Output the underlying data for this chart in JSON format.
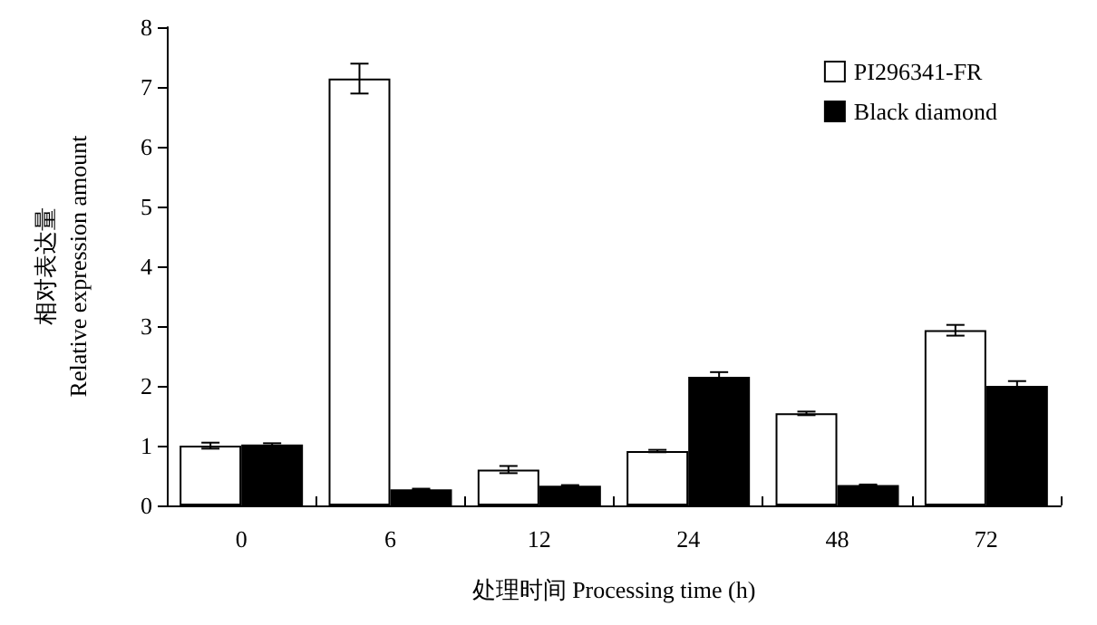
{
  "chart_data": {
    "type": "bar",
    "xlabel": "处理时间 Processing time (h)",
    "ylabel": "相对表达量\nRelative expression amount",
    "categories": [
      "0",
      "6",
      "12",
      "24",
      "48",
      "72"
    ],
    "series": [
      {
        "name": "PI296341-FR",
        "color": "#ffffff",
        "values": [
          1.0,
          7.14,
          0.6,
          0.91,
          1.54,
          2.93
        ],
        "errors": [
          0.05,
          0.25,
          0.06,
          0.02,
          0.03,
          0.09
        ]
      },
      {
        "name": "Black diamond",
        "color": "#000000",
        "values": [
          1.02,
          0.27,
          0.33,
          2.15,
          0.34,
          2.0
        ],
        "errors": [
          0.02,
          0.01,
          0.01,
          0.08,
          0.01,
          0.08
        ]
      }
    ],
    "ylim": [
      0,
      8
    ],
    "yticks": [
      0,
      1,
      2,
      3,
      4,
      5,
      6,
      7,
      8
    ],
    "grid": false,
    "legend": "top right"
  }
}
